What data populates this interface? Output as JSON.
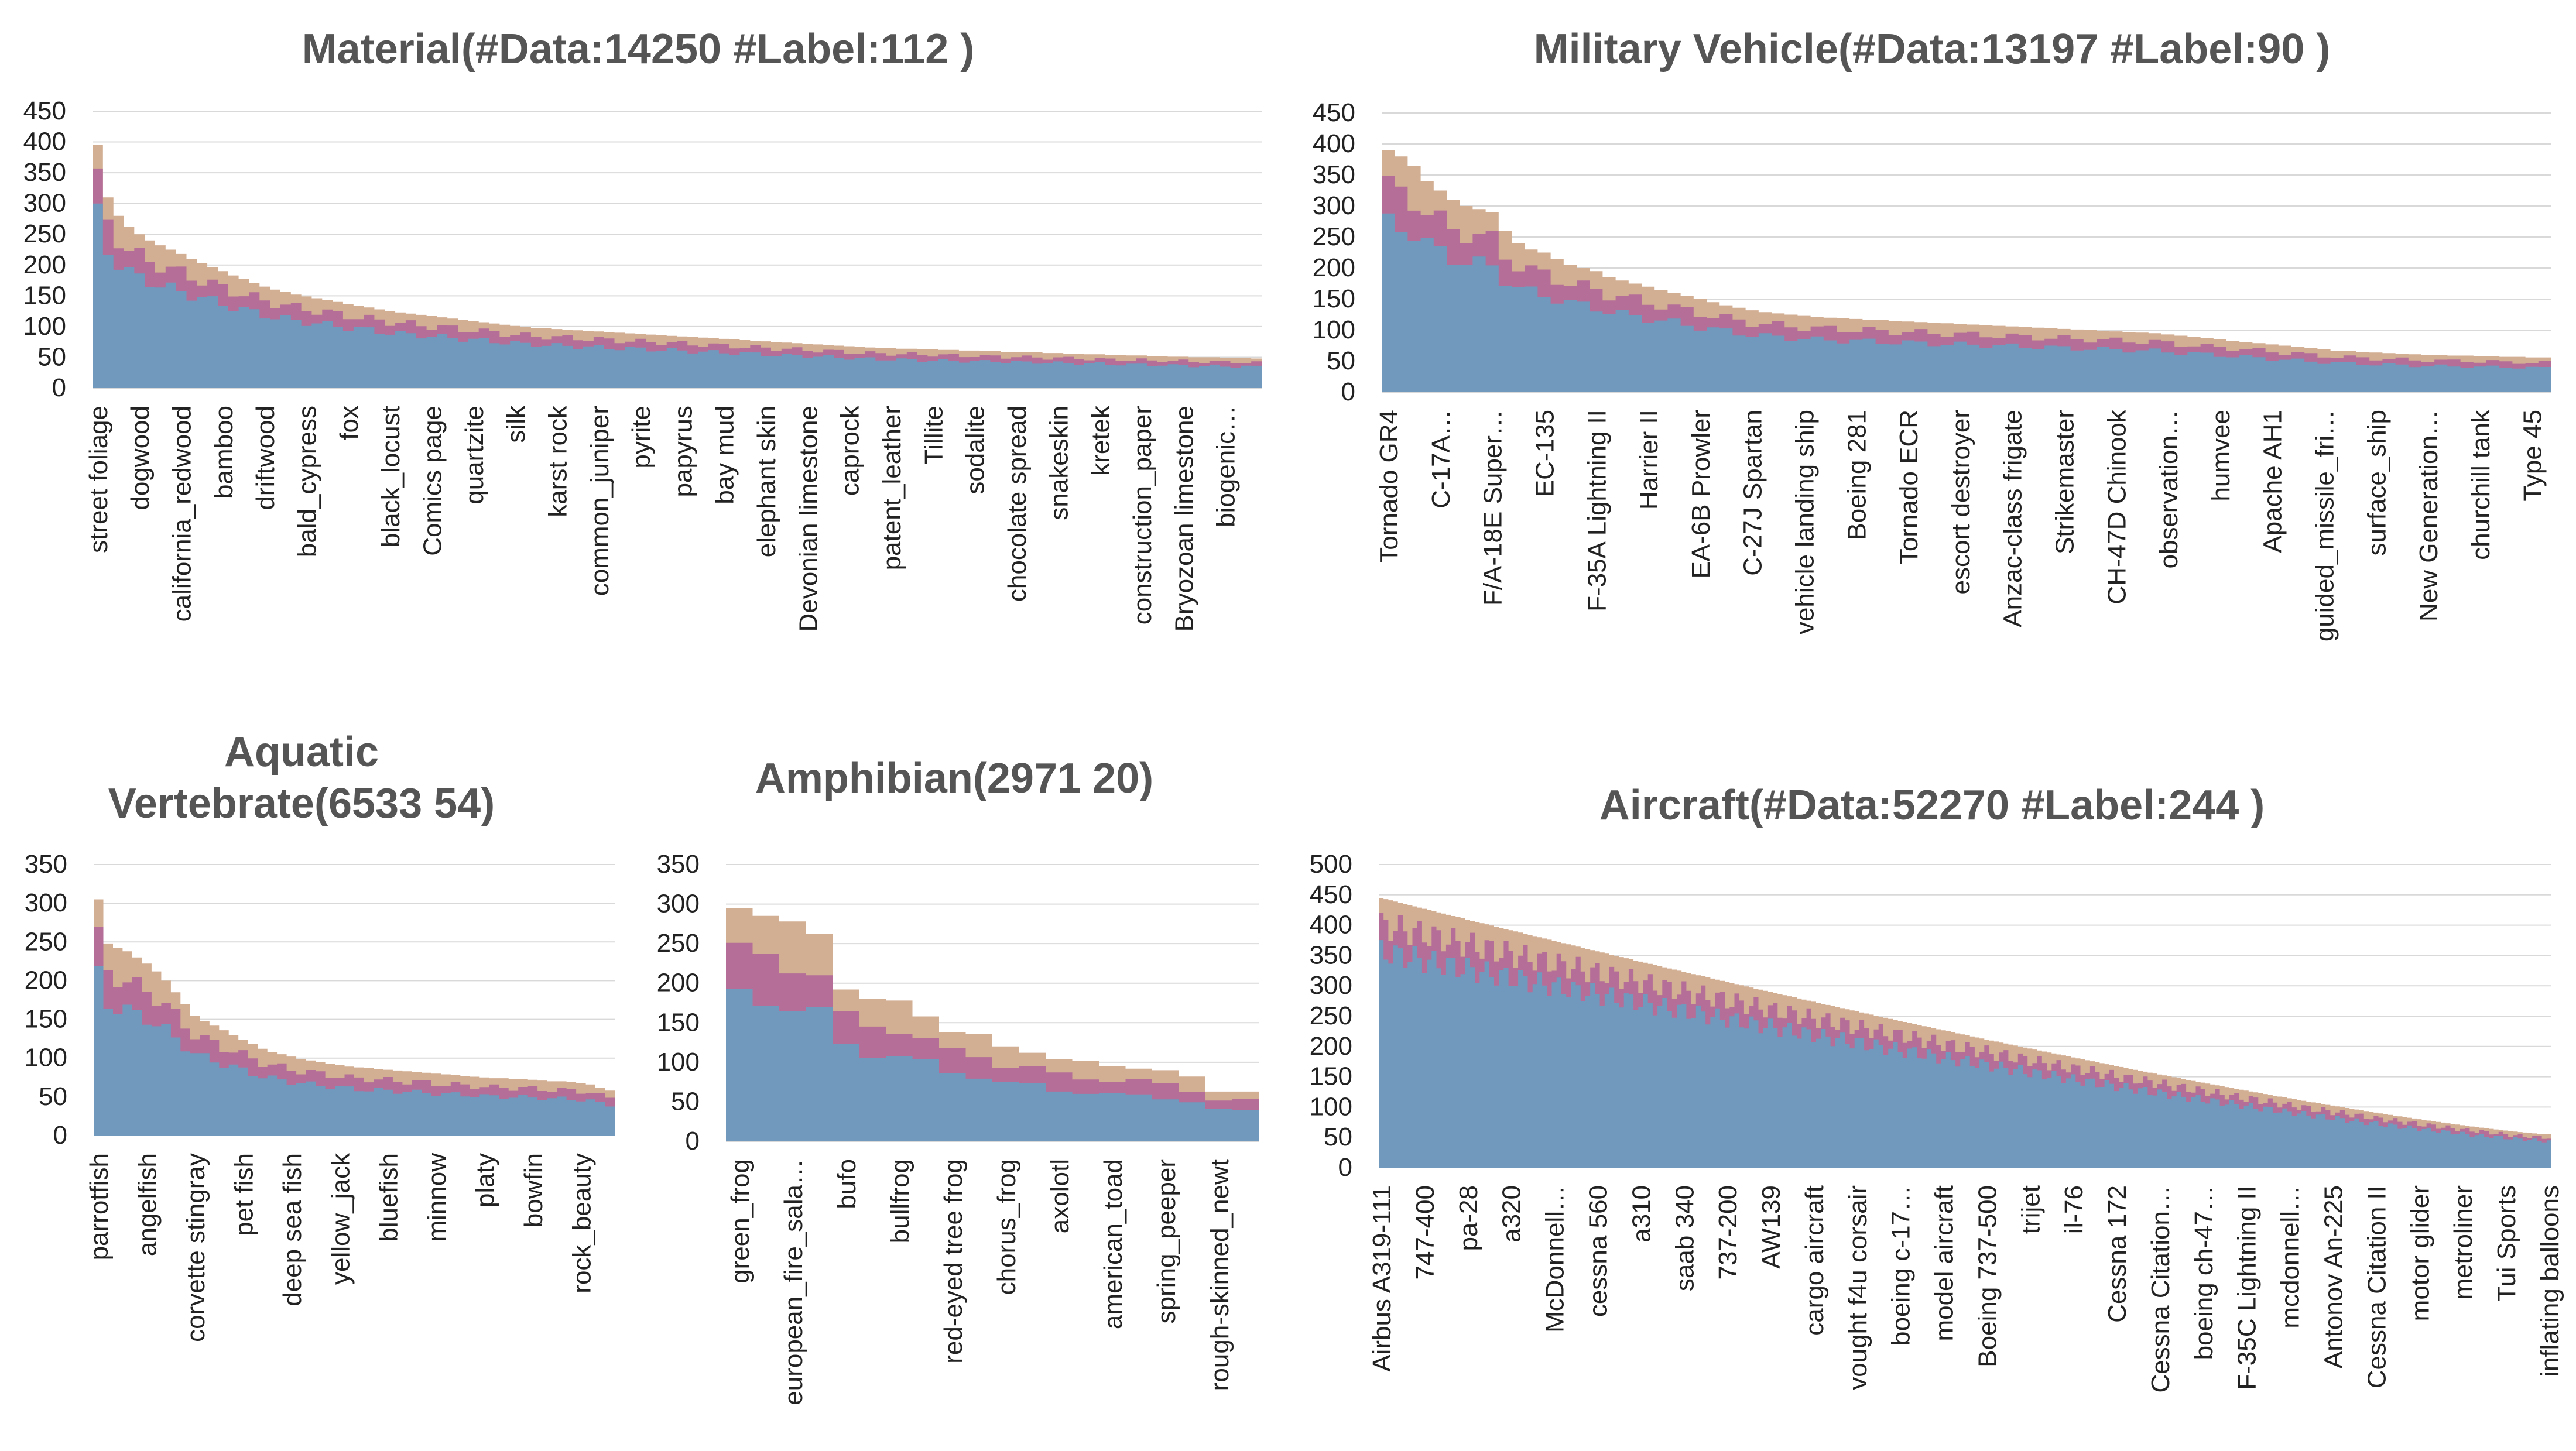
{
  "colors": {
    "series1": "#7099bd",
    "series2": "#b56e98",
    "series3": "#d2ae92",
    "grid": "#d9d9d9",
    "axis_text": "#222222",
    "title_text": "#555555"
  },
  "chart_data": [
    {
      "id": "material",
      "type": "area",
      "title": "Material(#Data:14250 #Label:112 )",
      "ylim": [
        0,
        450
      ],
      "yticks": [
        0,
        50,
        100,
        150,
        200,
        250,
        300,
        350,
        400,
        450
      ],
      "grid": true,
      "n": 112,
      "tick_labels": [
        "street foliage",
        "dogwood",
        "california_redwood",
        "bamboo",
        "driftwood",
        "bald_cypress",
        "fox",
        "black_locust",
        "Comics page",
        "quartzite",
        "silk",
        "karst rock",
        "common_juniper",
        "pyrite",
        "papyrus",
        "bay mud",
        "elephant skin",
        "Devonian limestone",
        "caprock",
        "patent_leather",
        "Tillite",
        "sodalite",
        "chocolate spread",
        "snakeskin",
        "kretek",
        "construction_paper",
        "Bryozoan limestone",
        "biogenic…"
      ],
      "totals": [
        395,
        310,
        280,
        262,
        250,
        240,
        232,
        225,
        218,
        210,
        203,
        196,
        190,
        183,
        177,
        171,
        165,
        160,
        156,
        152,
        149,
        146,
        143,
        140,
        137,
        134,
        131,
        128,
        125,
        123,
        121,
        119,
        117,
        115,
        113,
        111,
        109,
        107,
        105,
        103,
        101,
        99,
        98,
        97,
        96,
        95,
        94,
        93,
        92,
        91,
        90,
        89,
        88,
        87,
        86,
        85,
        84,
        83,
        82,
        81,
        80,
        79,
        78,
        77,
        76,
        75,
        74,
        73,
        72,
        71,
        70,
        69,
        68,
        67,
        66,
        65,
        65,
        64,
        64,
        63,
        63,
        62,
        62,
        61,
        61,
        60,
        60,
        59,
        59,
        58,
        58,
        57,
        57,
        56,
        56,
        55,
        55,
        54,
        54,
        53,
        53,
        52,
        52,
        51,
        51,
        50,
        50,
        50,
        49,
        49,
        49,
        48
      ],
      "shares": [
        0.72,
        0.14,
        0.14
      ]
    },
    {
      "id": "military",
      "type": "area",
      "title": "Military Vehicle(#Data:13197 #Label:90 )",
      "ylim": [
        0,
        450
      ],
      "yticks": [
        0,
        50,
        100,
        150,
        200,
        250,
        300,
        350,
        400,
        450
      ],
      "grid": true,
      "n": 90,
      "tick_labels": [
        "Tornado GR4",
        "C-17A…",
        "F/A-18E Super…",
        "EC-135",
        "F-35A Lightning II",
        "Harrier II",
        "EA-6B Prowler",
        "C-27J Spartan",
        "vehicle landing ship",
        "Boeing 281",
        "Tornado ECR",
        "escort destroyer",
        "Anzac-class frigate",
        "Strikemaster",
        "CH-47D Chinook",
        "observation…",
        "humvee",
        "Apache AH1",
        "guided_missile_fri…",
        "surface_ship",
        "New Generation…",
        "churchill tank",
        "Type 45"
      ],
      "totals": [
        390,
        380,
        365,
        340,
        325,
        310,
        300,
        295,
        290,
        260,
        240,
        230,
        225,
        215,
        205,
        200,
        195,
        185,
        180,
        175,
        170,
        165,
        160,
        155,
        150,
        145,
        140,
        136,
        132,
        129,
        127,
        125,
        123,
        121,
        120,
        119,
        118,
        117,
        116,
        115,
        114,
        113,
        112,
        111,
        110,
        109,
        108,
        107,
        106,
        105,
        104,
        103,
        102,
        101,
        100,
        99,
        98,
        97,
        96,
        95,
        93,
        91,
        89,
        87,
        85,
        83,
        81,
        79,
        77,
        75,
        73,
        71,
        69,
        67,
        66,
        65,
        64,
        63,
        62,
        61,
        60,
        60,
        59,
        59,
        58,
        58,
        57,
        57,
        56,
        56
      ],
      "shares": [
        0.7,
        0.15,
        0.15
      ]
    },
    {
      "id": "aquatic",
      "type": "area",
      "title": "Aquatic Vertebrate(6533 54)",
      "ylim": [
        0,
        350
      ],
      "yticks": [
        0,
        50,
        100,
        150,
        200,
        250,
        300,
        350
      ],
      "grid": true,
      "n": 54,
      "tick_labels": [
        "parrotfish",
        "angelfish",
        "corvette stingray",
        "pet fish",
        "deep sea fish",
        "yellow_jack",
        "bluefish",
        "minnow",
        "platy",
        "bowfin",
        "rock_beauty"
      ],
      "totals": [
        305,
        248,
        242,
        238,
        230,
        222,
        212,
        200,
        185,
        170,
        155,
        148,
        142,
        136,
        130,
        124,
        118,
        112,
        108,
        105,
        102,
        99,
        97,
        95,
        93,
        91,
        89,
        88,
        87,
        86,
        85,
        84,
        83,
        82,
        81,
        80,
        79,
        78,
        77,
        76,
        75,
        74,
        74,
        73,
        73,
        72,
        71,
        70,
        70,
        69,
        68,
        66,
        62,
        58
      ],
      "shares": [
        0.68,
        0.16,
        0.16
      ]
    },
    {
      "id": "amphibian",
      "type": "area",
      "title": "Amphibian(2971 20)",
      "ylim": [
        0,
        350
      ],
      "yticks": [
        0,
        50,
        100,
        150,
        200,
        250,
        300,
        350
      ],
      "grid": true,
      "n": 20,
      "tick_labels": [
        "green_frog",
        "european_fire_sala…",
        "bufo",
        "bullfrog",
        "red-eyed tree frog",
        "chorus_frog",
        "axolotl",
        "american_toad",
        "spring_peeper",
        "rough-skinned_newt"
      ],
      "totals": [
        295,
        285,
        278,
        262,
        192,
        180,
        178,
        158,
        138,
        136,
        120,
        112,
        104,
        102,
        95,
        92,
        90,
        82,
        63,
        63
      ],
      "shares": [
        0.62,
        0.19,
        0.19
      ]
    },
    {
      "id": "aircraft",
      "type": "area",
      "title": "Aircraft(#Data:52270 #Label:244 )",
      "ylim": [
        0,
        500
      ],
      "yticks": [
        0,
        50,
        100,
        150,
        200,
        250,
        300,
        350,
        400,
        450,
        500
      ],
      "grid": true,
      "n": 244,
      "max": 445,
      "min": 55,
      "tick_labels": [
        "Airbus A319-111",
        "747-400",
        "pa-28",
        "a320",
        "McDonnell…",
        "cessna 560",
        "a310",
        "saab 340",
        "737-200",
        "AW139",
        "cargo aircraft",
        "vought f4u corsair",
        "boeing c-17…",
        "model aircraft",
        "Boeing 737-500",
        "trijet",
        "il-76",
        "Cessna 172",
        "Cessna Citation…",
        "boeing ch-47…",
        "F-35C Lightning II",
        "mcdonnell…",
        "Antonov An-225",
        "Cessna Citation II",
        "motor glider",
        "metroliner",
        "Tui Sports",
        "inflating balloons"
      ],
      "shares": [
        0.8,
        0.1,
        0.1
      ]
    }
  ]
}
